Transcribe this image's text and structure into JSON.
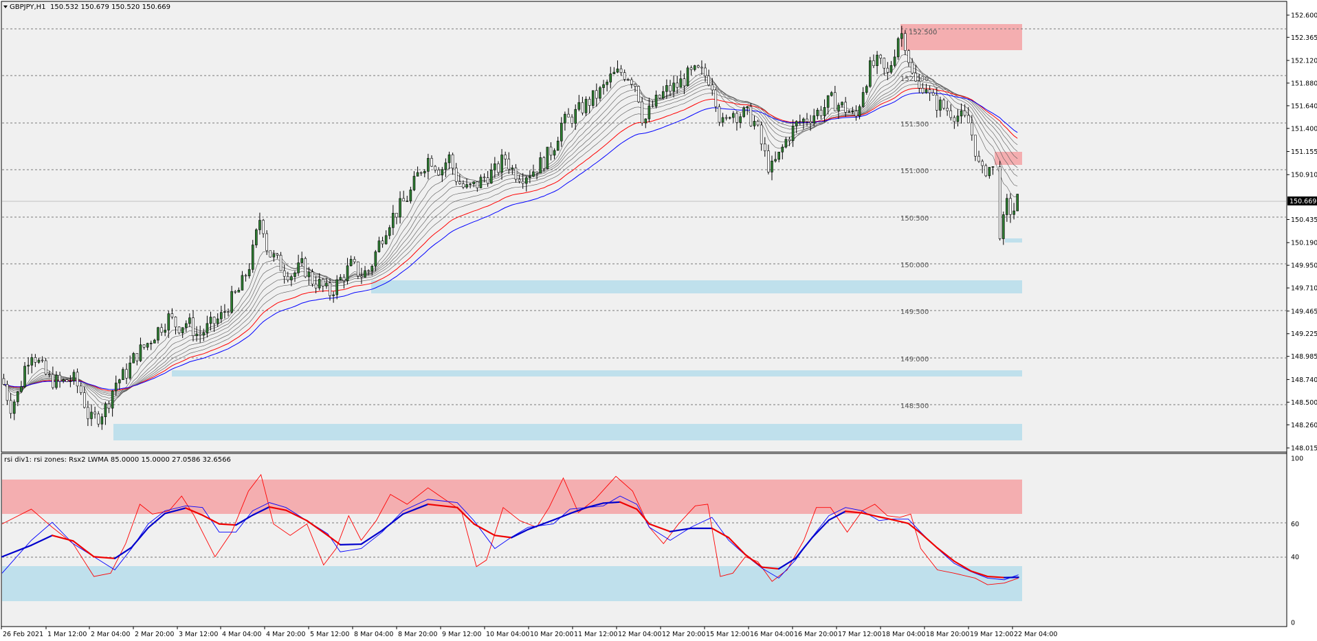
{
  "chart_data": [
    {
      "type": "candlestick",
      "title": "GBPJPY,H1",
      "ohlc_readout": "150.532 150.679 150.520 150.669",
      "current_price_label": "150.669",
      "y_ticks": [
        "152.600",
        "152.365",
        "152.120",
        "151.880",
        "151.640",
        "151.400",
        "151.155",
        "150.910",
        "150.669",
        "150.435",
        "150.190",
        "149.950",
        "149.710",
        "149.465",
        "149.225",
        "148.985",
        "148.740",
        "148.500",
        "148.260",
        "148.015"
      ],
      "x_ticks": [
        "26 Feb 2021",
        "1 Mar 12:00",
        "2 Mar 04:00",
        "2 Mar 20:00",
        "3 Mar 12:00",
        "4 Mar 04:00",
        "4 Mar 20:00",
        "5 Mar 12:00",
        "8 Mar 04:00",
        "8 Mar 20:00",
        "9 Mar 12:00",
        "10 Mar 04:00",
        "10 Mar 20:00",
        "11 Mar 12:00",
        "12 Mar 04:00",
        "12 Mar 20:00",
        "15 Mar 12:00",
        "16 Mar 04:00",
        "16 Mar 20:00",
        "17 Mar 12:00",
        "18 Mar 04:00",
        "18 Mar 20:00",
        "19 Mar 12:00",
        "22 Mar 04:00"
      ],
      "level_labels": [
        "151.500",
        "151.000",
        "150.500",
        "150.000",
        "149.500",
        "149.000",
        "148.500"
      ],
      "ylim": [
        148.015,
        152.6
      ],
      "close_path": [
        [
          0,
          148.75
        ],
        [
          10,
          148.45
        ],
        [
          20,
          148.6
        ],
        [
          28,
          148.9
        ],
        [
          35,
          149.05
        ],
        [
          45,
          148.9
        ],
        [
          55,
          148.75
        ],
        [
          70,
          148.7
        ],
        [
          85,
          148.75
        ],
        [
          95,
          148.6
        ],
        [
          105,
          148.3
        ],
        [
          115,
          148.35
        ],
        [
          125,
          148.45
        ],
        [
          135,
          148.7
        ],
        [
          148,
          148.8
        ],
        [
          160,
          149.0
        ],
        [
          172,
          149.1
        ],
        [
          185,
          149.25
        ],
        [
          200,
          149.4
        ],
        [
          210,
          149.3
        ],
        [
          222,
          149.35
        ],
        [
          235,
          149.2
        ],
        [
          248,
          149.3
        ],
        [
          262,
          149.4
        ],
        [
          272,
          149.55
        ],
        [
          285,
          149.7
        ],
        [
          298,
          150.0
        ],
        [
          310,
          150.5
        ],
        [
          318,
          150.1
        ],
        [
          328,
          150.0
        ],
        [
          338,
          149.9
        ],
        [
          348,
          149.85
        ],
        [
          360,
          149.95
        ],
        [
          370,
          149.8
        ],
        [
          380,
          149.75
        ],
        [
          392,
          149.65
        ],
        [
          405,
          149.8
        ],
        [
          418,
          149.95
        ],
        [
          430,
          149.85
        ],
        [
          440,
          149.9
        ],
        [
          450,
          150.15
        ],
        [
          462,
          150.4
        ],
        [
          475,
          150.55
        ],
        [
          488,
          150.7
        ],
        [
          500,
          150.95
        ],
        [
          512,
          151.1
        ],
        [
          525,
          150.95
        ],
        [
          535,
          151.1
        ],
        [
          545,
          150.85
        ],
        [
          555,
          150.75
        ],
        [
          568,
          150.8
        ],
        [
          580,
          150.9
        ],
        [
          592,
          150.95
        ],
        [
          602,
          151.1
        ],
        [
          612,
          150.95
        ],
        [
          622,
          150.9
        ],
        [
          635,
          150.95
        ],
        [
          648,
          151.05
        ],
        [
          660,
          151.2
        ],
        [
          670,
          151.45
        ],
        [
          680,
          151.5
        ],
        [
          692,
          151.6
        ],
        [
          705,
          151.7
        ],
        [
          718,
          151.8
        ],
        [
          730,
          151.95
        ],
        [
          742,
          152.0
        ],
        [
          752,
          151.95
        ],
        [
          760,
          151.85
        ],
        [
          768,
          151.45
        ],
        [
          776,
          151.6
        ],
        [
          785,
          151.7
        ],
        [
          795,
          151.8
        ],
        [
          808,
          151.85
        ],
        [
          820,
          151.95
        ],
        [
          832,
          152.0
        ],
        [
          845,
          151.95
        ],
        [
          852,
          151.85
        ],
        [
          858,
          151.55
        ],
        [
          865,
          151.4
        ],
        [
          872,
          151.6
        ],
        [
          880,
          151.55
        ],
        [
          892,
          151.55
        ],
        [
          902,
          151.45
        ],
        [
          912,
          151.15
        ],
        [
          920,
          150.95
        ],
        [
          930,
          151.1
        ],
        [
          940,
          151.3
        ],
        [
          952,
          151.45
        ],
        [
          962,
          151.5
        ],
        [
          972,
          151.55
        ],
        [
          982,
          151.6
        ],
        [
          992,
          151.7
        ],
        [
          1002,
          151.65
        ],
        [
          1012,
          151.6
        ],
        [
          1022,
          151.5
        ],
        [
          1030,
          151.8
        ],
        [
          1040,
          152.05
        ],
        [
          1050,
          152.1
        ],
        [
          1060,
          151.95
        ],
        [
          1068,
          152.2
        ],
        [
          1075,
          152.45
        ],
        [
          1082,
          152.3
        ],
        [
          1090,
          151.95
        ],
        [
          1098,
          151.8
        ],
        [
          1105,
          151.9
        ],
        [
          1112,
          151.7
        ],
        [
          1122,
          151.65
        ],
        [
          1132,
          151.6
        ],
        [
          1142,
          151.55
        ],
        [
          1150,
          151.5
        ],
        [
          1158,
          151.45
        ],
        [
          1165,
          151.2
        ],
        [
          1172,
          150.9
        ],
        [
          1180,
          151.0
        ],
        [
          1188,
          150.95
        ],
        [
          1196,
          150.2
        ],
        [
          1202,
          150.6
        ],
        [
          1210,
          150.5
        ],
        [
          1217,
          150.67
        ]
      ]
    },
    {
      "type": "line",
      "title": "rsi div1: rsi zones: Rsx2 LWMA 85.0000 15.0000 27.0586 32.6566",
      "y_ticks": [
        "100",
        "60",
        "40",
        "0"
      ],
      "ylim": [
        0,
        100
      ],
      "series": [
        {
          "color": "#ff0000",
          "points": [
            [
              0,
              60
            ],
            [
              35,
              69
            ],
            [
              60,
              58
            ],
            [
              85,
              48
            ],
            [
              110,
              28
            ],
            [
              130,
              30
            ],
            [
              148,
              48
            ],
            [
              165,
              72
            ],
            [
              180,
              66
            ],
            [
              200,
              68
            ],
            [
              215,
              77
            ],
            [
              230,
              65
            ],
            [
              255,
              40
            ],
            [
              275,
              55
            ],
            [
              295,
              80
            ],
            [
              310,
              90
            ],
            [
              325,
              60
            ],
            [
              345,
              53
            ],
            [
              365,
              60
            ],
            [
              385,
              35
            ],
            [
              400,
              45
            ],
            [
              415,
              65
            ],
            [
              430,
              50
            ],
            [
              448,
              62
            ],
            [
              465,
              78
            ],
            [
              485,
              72
            ],
            [
              510,
              82
            ],
            [
              530,
              75
            ],
            [
              550,
              68
            ],
            [
              568,
              34
            ],
            [
              580,
              38
            ],
            [
              600,
              70
            ],
            [
              620,
              62
            ],
            [
              640,
              58
            ],
            [
              655,
              70
            ],
            [
              672,
              88
            ],
            [
              690,
              67
            ],
            [
              710,
              75
            ],
            [
              735,
              89
            ],
            [
              755,
              80
            ],
            [
              775,
              58
            ],
            [
              792,
              48
            ],
            [
              810,
              60
            ],
            [
              830,
              71
            ],
            [
              845,
              72
            ],
            [
              860,
              28
            ],
            [
              875,
              30
            ],
            [
              890,
              40
            ],
            [
              905,
              37
            ],
            [
              922,
              25
            ],
            [
              940,
              32
            ],
            [
              960,
              50
            ],
            [
              975,
              70
            ],
            [
              992,
              70
            ],
            [
              1012,
              55
            ],
            [
              1030,
              68
            ],
            [
              1045,
              72
            ],
            [
              1060,
              65
            ],
            [
              1075,
              64
            ],
            [
              1088,
              66
            ],
            [
              1100,
              45
            ],
            [
              1120,
              32
            ],
            [
              1140,
              30
            ],
            [
              1165,
              27
            ],
            [
              1180,
              23
            ],
            [
              1200,
              24
            ],
            [
              1217,
              27
            ]
          ]
        },
        {
          "color": "#0000ff",
          "points": [
            [
              0,
              30
            ],
            [
              35,
              50
            ],
            [
              60,
              61
            ],
            [
              85,
              48
            ],
            [
              110,
              40
            ],
            [
              135,
              32
            ],
            [
              155,
              45
            ],
            [
              175,
              60
            ],
            [
              195,
              68
            ],
            [
              220,
              71
            ],
            [
              240,
              70
            ],
            [
              260,
              55
            ],
            [
              280,
              55
            ],
            [
              300,
              68
            ],
            [
              320,
              73
            ],
            [
              340,
              70
            ],
            [
              365,
              62
            ],
            [
              390,
              54
            ],
            [
              405,
              43
            ],
            [
              430,
              45
            ],
            [
              455,
              55
            ],
            [
              480,
              68
            ],
            [
              510,
              75
            ],
            [
              545,
              73
            ],
            [
              565,
              62
            ],
            [
              590,
              45
            ],
            [
              610,
              52
            ],
            [
              630,
              58
            ],
            [
              660,
              60
            ],
            [
              680,
              69
            ],
            [
              700,
              70
            ],
            [
              720,
              71
            ],
            [
              740,
              77
            ],
            [
              760,
              72
            ],
            [
              775,
              58
            ],
            [
              800,
              50
            ],
            [
              825,
              58
            ],
            [
              850,
              64
            ],
            [
              870,
              50
            ],
            [
              890,
              41
            ],
            [
              910,
              33
            ],
            [
              930,
              27
            ],
            [
              950,
              38
            ],
            [
              970,
              52
            ],
            [
              990,
              65
            ],
            [
              1010,
              70
            ],
            [
              1030,
              68
            ],
            [
              1050,
              62
            ],
            [
              1065,
              63
            ],
            [
              1085,
              63
            ],
            [
              1100,
              55
            ],
            [
              1120,
              45
            ],
            [
              1140,
              36
            ],
            [
              1160,
              31
            ],
            [
              1180,
              27
            ],
            [
              1200,
              26
            ],
            [
              1217,
              29
            ]
          ]
        }
      ]
    }
  ]
}
